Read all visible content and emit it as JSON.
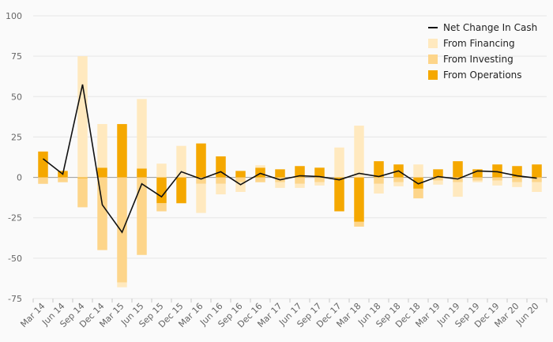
{
  "chart_data": {
    "type": "bar",
    "stacked": true,
    "categories": [
      "Mar 14",
      "Jun 14",
      "Sep 14",
      "Dec 14",
      "Mar 15",
      "Jun 15",
      "Sep 15",
      "Dec 15",
      "Mar 16",
      "Jun 16",
      "Sep 16",
      "Dec 16",
      "Mar 17",
      "Jun 17",
      "Sep 17",
      "Dec 17",
      "Mar 18",
      "Jun 18",
      "Sep 18",
      "Dec 18",
      "Mar 19",
      "Jun 19",
      "Sep 19",
      "Dec 19",
      "Mar 20",
      "Jun 20"
    ],
    "ylim": [
      -75,
      100
    ],
    "yticks": [
      100,
      75,
      50,
      25,
      0,
      -25,
      -50,
      -75
    ],
    "grid": true,
    "legend_position": "top-right",
    "series": [
      {
        "name": "From Operations",
        "color": "#f5a800",
        "values": [
          16,
          4,
          -0.5,
          6,
          33,
          5.5,
          -16,
          -16,
          21,
          13,
          4,
          6,
          5,
          7,
          6,
          -21,
          -27.5,
          10,
          8,
          -7,
          5,
          10,
          5,
          8,
          7,
          8
        ]
      },
      {
        "name": "From Investing",
        "color": "#fdd58a",
        "values": [
          -4,
          -3,
          -18,
          -45,
          -65,
          -48,
          -5,
          0,
          -4,
          -4,
          -3,
          -3,
          -3,
          -4,
          -3,
          0,
          -3,
          -4,
          -3,
          -6,
          -2,
          -3,
          -2,
          -2,
          -3,
          -3
        ]
      },
      {
        "name": "From Financing",
        "color": "#ffe9bf",
        "values": [
          0,
          0,
          75,
          27,
          -3,
          43,
          8.5,
          19.5,
          -18,
          -6.5,
          -6,
          1.5,
          -3.5,
          -2.5,
          -2,
          18.5,
          32,
          -6,
          -2.5,
          8,
          -2.5,
          -9,
          -1,
          -3,
          -3,
          -6
        ]
      },
      {
        "name": "Net Change In Cash",
        "type": "line",
        "color": "#111111",
        "values": [
          11.5,
          2,
          57.5,
          -17,
          -34,
          -4,
          -12,
          3.5,
          -1,
          3.5,
          -4.5,
          2.5,
          -1.5,
          1,
          0.5,
          -1.5,
          2.5,
          0.5,
          4,
          -4,
          0.5,
          -1,
          4,
          3.5,
          1,
          -0.5
        ]
      }
    ]
  }
}
